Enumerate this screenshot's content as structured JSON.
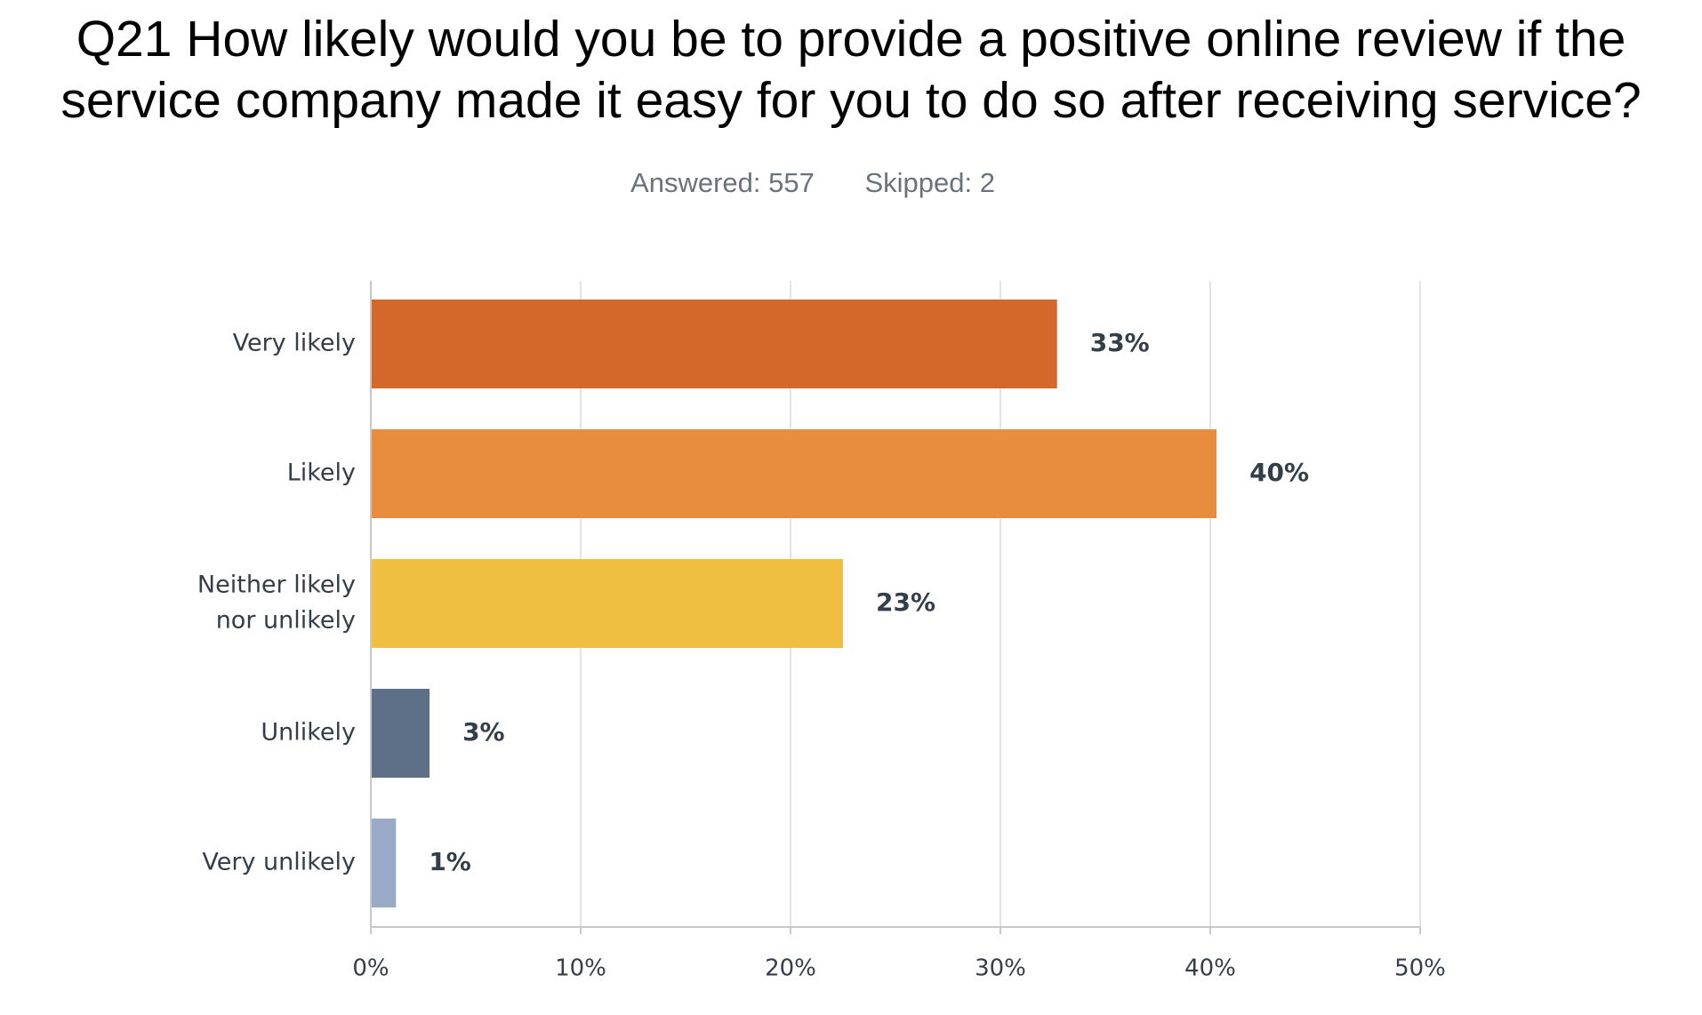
{
  "header": {
    "title_line1": "Q21 How likely would you be to provide a positive online review if the",
    "title_line2": "service company made it easy for you to do so after receiving service?",
    "answered": "Answered: 557",
    "skipped": "Skipped: 2"
  },
  "chart_data": {
    "type": "bar",
    "orientation": "horizontal",
    "categories": [
      [
        "Very likely"
      ],
      [
        "Likely"
      ],
      [
        "Neither likely",
        "nor unlikely"
      ],
      [
        "Unlikely"
      ],
      [
        "Very unlikely"
      ]
    ],
    "values": [
      32.7,
      40.3,
      22.5,
      2.8,
      1.2
    ],
    "value_labels": [
      "33%",
      "40%",
      "23%",
      "3%",
      "1%"
    ],
    "colors": [
      "#d4672a",
      "#e78d3d",
      "#f0be41",
      "#5e7087",
      "#99aac6"
    ],
    "xlim": [
      0,
      50
    ],
    "xticks": [
      0,
      10,
      20,
      30,
      40,
      50
    ],
    "xtick_labels": [
      "0%",
      "10%",
      "20%",
      "30%",
      "40%",
      "50%"
    ],
    "grid": true,
    "title": "Q21 How likely would you be to provide a positive online review if the service company made it easy for you to do so after receiving service?",
    "xlabel": "",
    "ylabel": ""
  }
}
